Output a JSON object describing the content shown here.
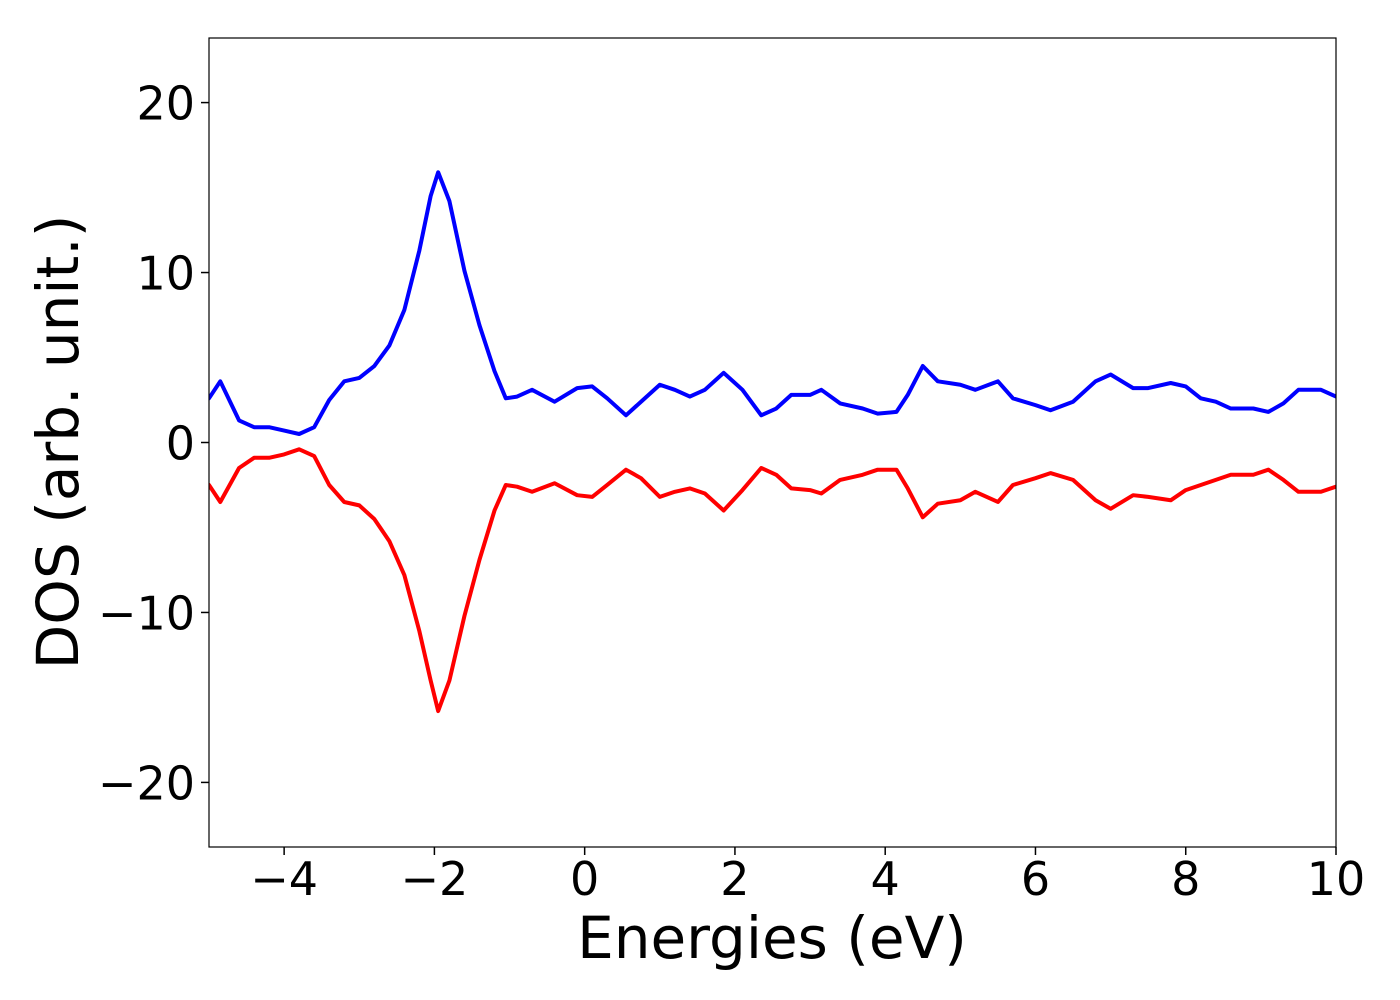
{
  "chart_data": {
    "type": "line",
    "xlabel": "Energies (eV)",
    "ylabel": "DOS (arb. unit.)",
    "x": [
      -5,
      -4.85,
      -4.6,
      -4.4,
      -4.2,
      -4,
      -3.8,
      -3.6,
      -3.4,
      -3.2,
      -3,
      -2.8,
      -2.6,
      -2.4,
      -2.2,
      -2.05,
      -1.95,
      -1.8,
      -1.6,
      -1.4,
      -1.2,
      -1.05,
      -0.9,
      -0.7,
      -0.4,
      -0.1,
      0.1,
      0.3,
      0.55,
      0.75,
      1,
      1.2,
      1.4,
      1.6,
      1.85,
      2.1,
      2.35,
      2.55,
      2.75,
      3,
      3.15,
      3.4,
      3.7,
      3.9,
      4.15,
      4.3,
      4.5,
      4.7,
      5,
      5.2,
      5.5,
      5.7,
      6,
      6.2,
      6.5,
      6.8,
      7,
      7.3,
      7.5,
      7.8,
      8,
      8.2,
      8.4,
      8.6,
      8.9,
      9.1,
      9.3,
      9.5,
      9.8,
      10
    ],
    "series": [
      {
        "color": "#0000ff",
        "values": [
          2.6,
          3.6,
          1.3,
          0.9,
          0.9,
          0.7,
          0.5,
          0.9,
          2.5,
          3.6,
          3.8,
          4.5,
          5.7,
          7.8,
          11.3,
          14.5,
          15.9,
          14.2,
          10.1,
          6.9,
          4.2,
          2.6,
          2.7,
          3.1,
          2.4,
          3.2,
          3.3,
          2.6,
          1.6,
          2.4,
          3.4,
          3.1,
          2.7,
          3.1,
          4.1,
          3.1,
          1.6,
          2.0,
          2.8,
          2.8,
          3.1,
          2.3,
          2.0,
          1.7,
          1.8,
          2.8,
          4.5,
          3.6,
          3.4,
          3.1,
          3.6,
          2.6,
          2.2,
          1.9,
          2.4,
          3.6,
          4.0,
          3.2,
          3.2,
          3.5,
          3.3,
          2.6,
          2.4,
          2.0,
          2.0,
          1.8,
          2.3,
          3.1,
          3.1,
          2.7
        ]
      },
      {
        "color": "#ff0000",
        "values": [
          -2.5,
          -3.5,
          -1.5,
          -0.9,
          -0.9,
          -0.7,
          -0.4,
          -0.8,
          -2.5,
          -3.5,
          -3.7,
          -4.5,
          -5.8,
          -7.8,
          -11.1,
          -14.0,
          -15.8,
          -14.0,
          -10.2,
          -6.9,
          -4.0,
          -2.5,
          -2.6,
          -2.9,
          -2.4,
          -3.1,
          -3.2,
          -2.5,
          -1.6,
          -2.1,
          -3.2,
          -2.9,
          -2.7,
          -3.0,
          -4.0,
          -2.8,
          -1.5,
          -1.9,
          -2.7,
          -2.8,
          -3.0,
          -2.2,
          -1.9,
          -1.6,
          -1.6,
          -2.7,
          -4.4,
          -3.6,
          -3.4,
          -2.9,
          -3.5,
          -2.5,
          -2.1,
          -1.8,
          -2.2,
          -3.4,
          -3.9,
          -3.1,
          -3.2,
          -3.4,
          -2.8,
          -2.5,
          -2.2,
          -1.9,
          -1.9,
          -1.6,
          -2.2,
          -2.9,
          -2.9,
          -2.6
        ]
      }
    ],
    "xlim": [
      -5,
      10
    ],
    "xticks": [
      {
        "value": -4,
        "label": "−4"
      },
      {
        "value": -2,
        "label": "−2"
      },
      0,
      2,
      4,
      6,
      8,
      10
    ],
    "ylim": [
      -23.8,
      23.8
    ],
    "yticks": [
      {
        "value": -20,
        "label": "−20"
      },
      {
        "value": -10,
        "label": "−10"
      },
      0,
      10,
      20
    ],
    "grid": false
  }
}
